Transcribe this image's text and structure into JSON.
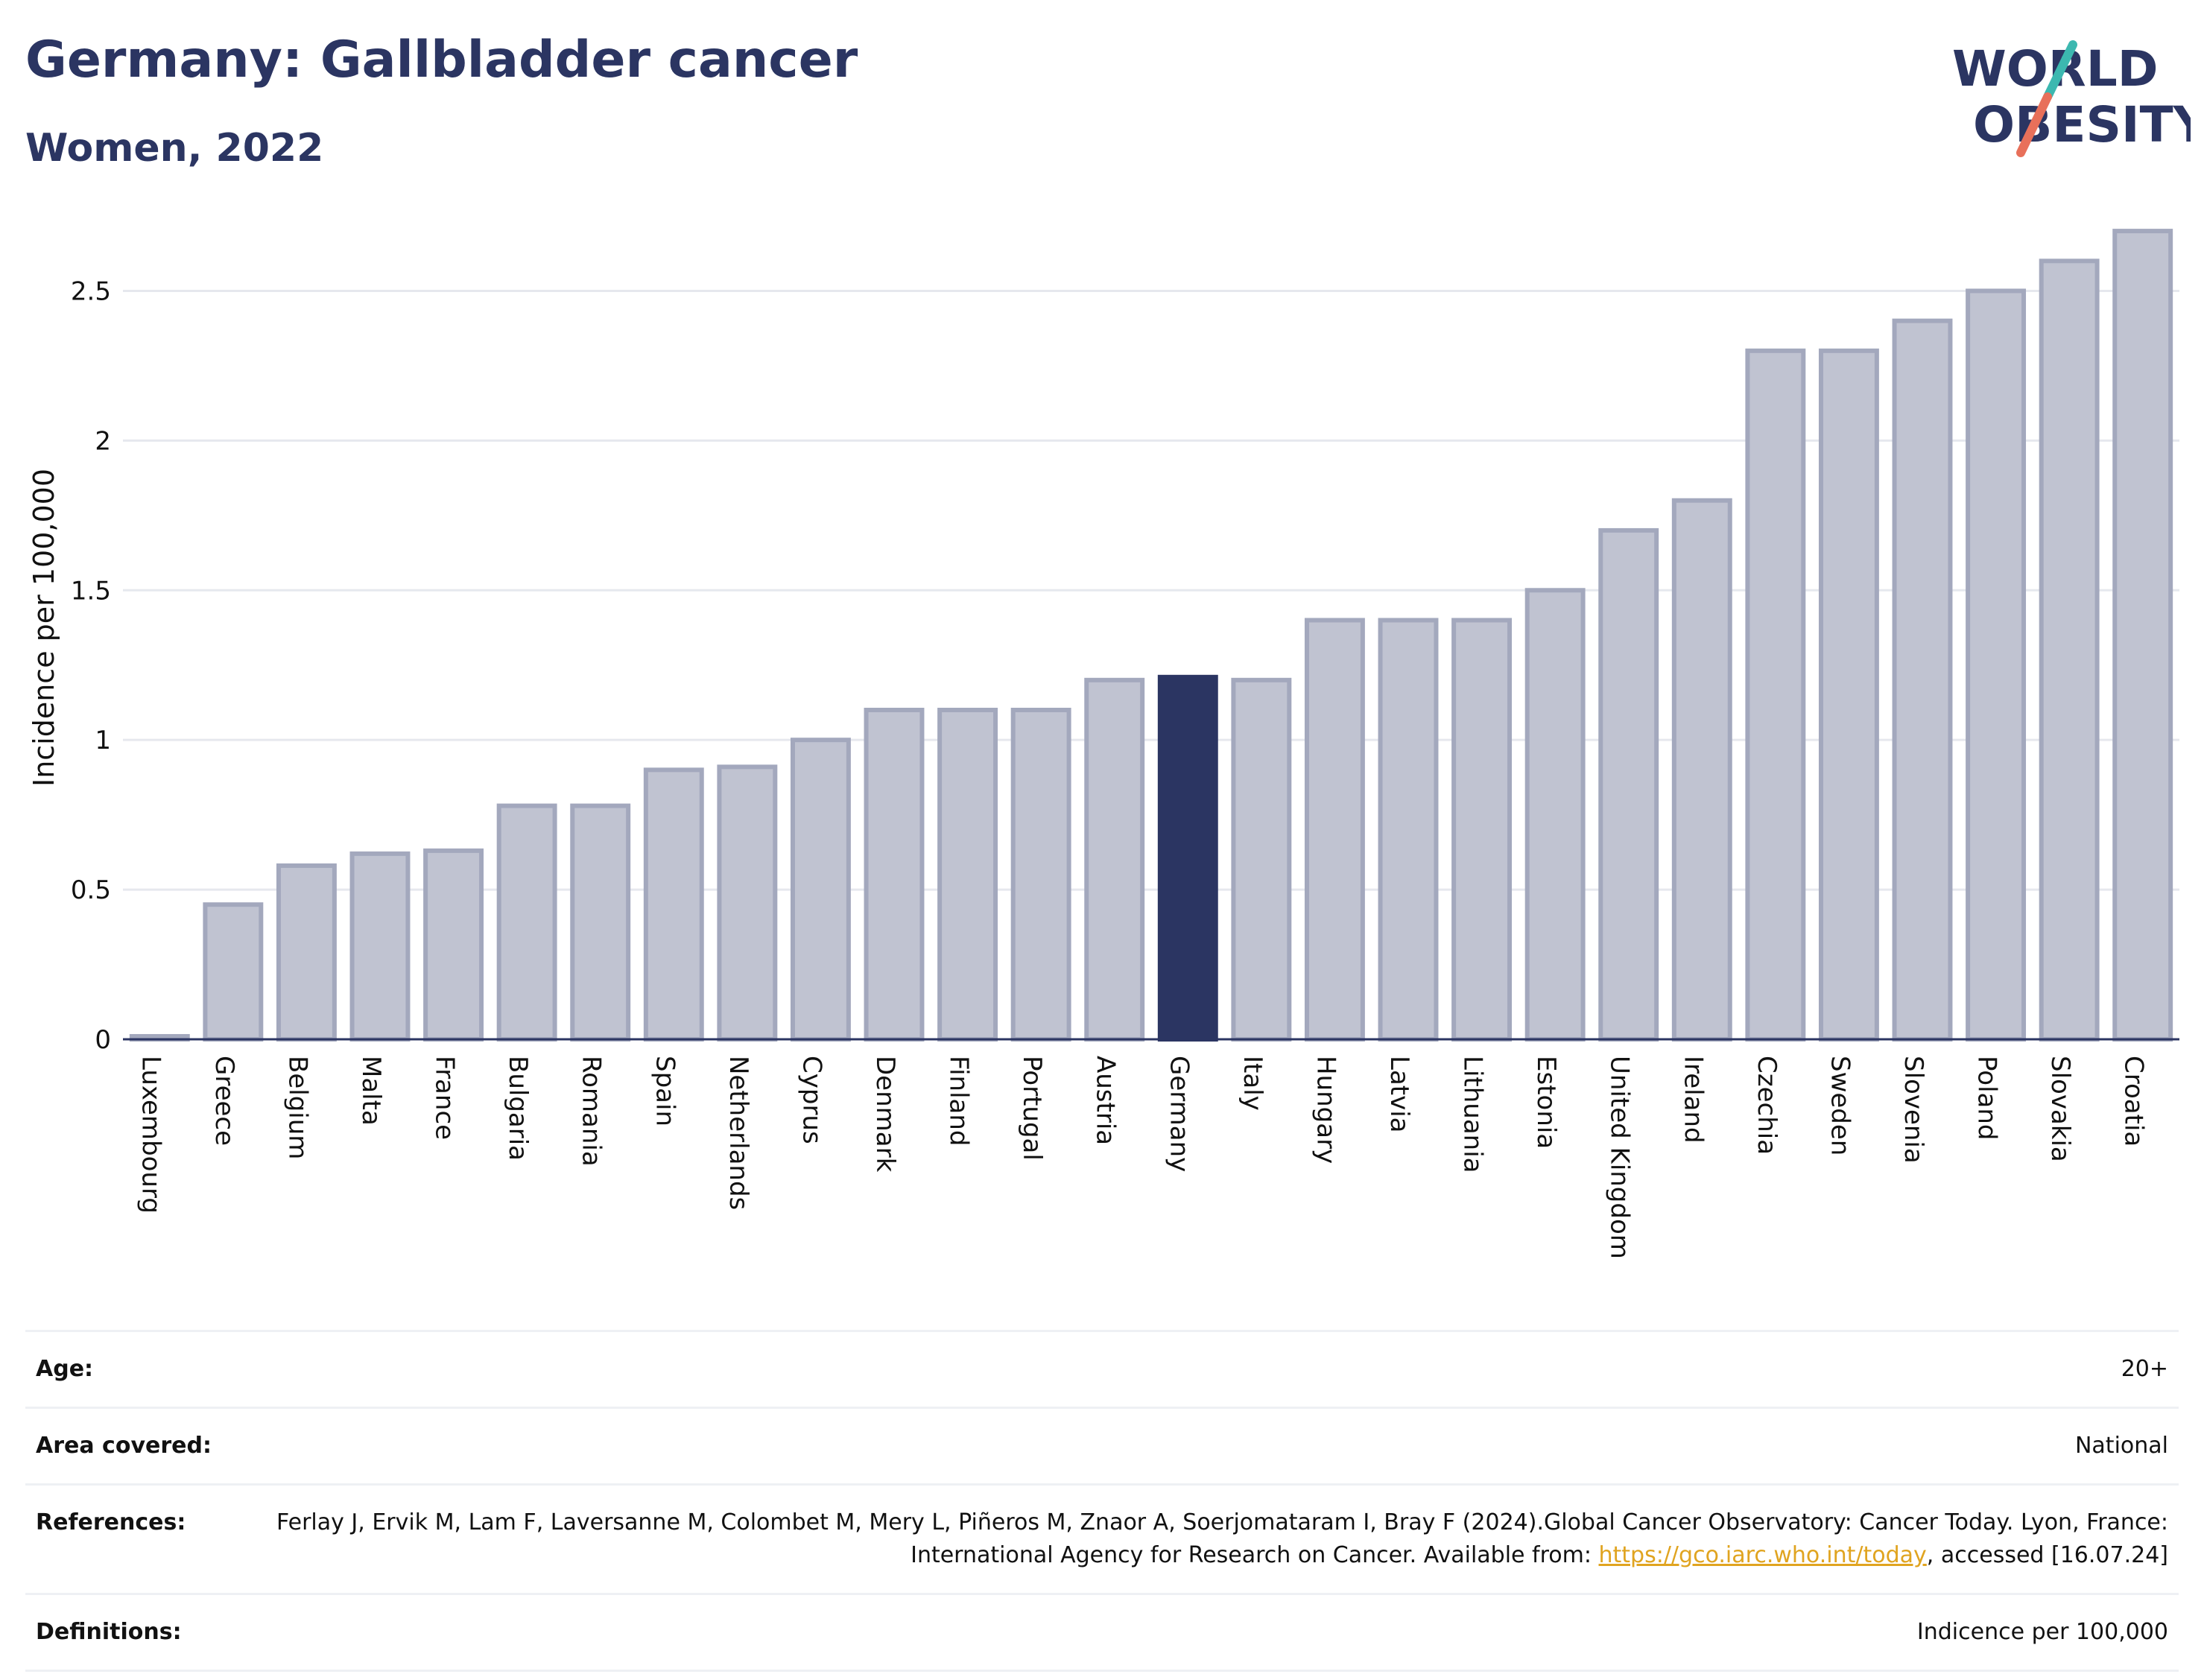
{
  "header": {
    "title": "Germany: Gallbladder cancer",
    "subtitle": "Women, 2022"
  },
  "logo": {
    "line1": "WORLD",
    "line2": "OBESITY",
    "colors": {
      "text": "#2b3562",
      "slash_top": "#3cb8b0",
      "slash_bottom": "#e8705a"
    }
  },
  "chart_data": {
    "type": "bar",
    "title": "",
    "xlabel": "",
    "ylabel": "Incidence per 100,000",
    "ylim": [
      0,
      2.75
    ],
    "yticks": [
      0,
      0.5,
      1,
      1.5,
      2,
      2.5
    ],
    "ytick_labels": [
      "0",
      "0.5",
      "1",
      "1.5",
      "2",
      "2.5"
    ],
    "grid": true,
    "highlight": "Germany",
    "colors": {
      "bar": "#c0c3d1",
      "bar_edge": "#a3a8bd",
      "highlight": "#2b3562",
      "grid": "#e6e8ee",
      "axis": "#2b3562"
    },
    "categories": [
      "Luxembourg",
      "Greece",
      "Belgium",
      "Malta",
      "France",
      "Bulgaria",
      "Romania",
      "Spain",
      "Netherlands",
      "Cyprus",
      "Denmark",
      "Finland",
      "Portugal",
      "Austria",
      "Germany",
      "Italy",
      "Hungary",
      "Latvia",
      "Lithuania",
      "Estonia",
      "United Kingdom",
      "Ireland",
      "Czechia",
      "Sweden",
      "Slovenia",
      "Poland",
      "Slovakia",
      "Croatia"
    ],
    "values": [
      0.01,
      0.45,
      0.58,
      0.62,
      0.63,
      0.78,
      0.78,
      0.9,
      0.91,
      1.0,
      1.1,
      1.1,
      1.1,
      1.2,
      1.21,
      1.2,
      1.4,
      1.4,
      1.4,
      1.5,
      1.7,
      1.8,
      2.3,
      2.3,
      2.4,
      2.5,
      2.6,
      2.7
    ]
  },
  "meta": {
    "age": {
      "label": "Age:",
      "value": "20+"
    },
    "area": {
      "label": "Area covered:",
      "value": "National"
    },
    "references": {
      "label": "References:",
      "text_before": "Ferlay J, Ervik M, Lam F, Laversanne M, Colombet M, Mery L, Piñeros M, Znaor A, Soerjomataram I, Bray F (2024).Global Cancer Observatory: Cancer Today. Lyon, France: International Agency for Research on Cancer. Available from: ",
      "link": "https://gco.iarc.who.int/today",
      "text_after": ", accessed [16.07.24]"
    },
    "definitions": {
      "label": "Definitions:",
      "value": "Indicence per 100,000"
    }
  }
}
